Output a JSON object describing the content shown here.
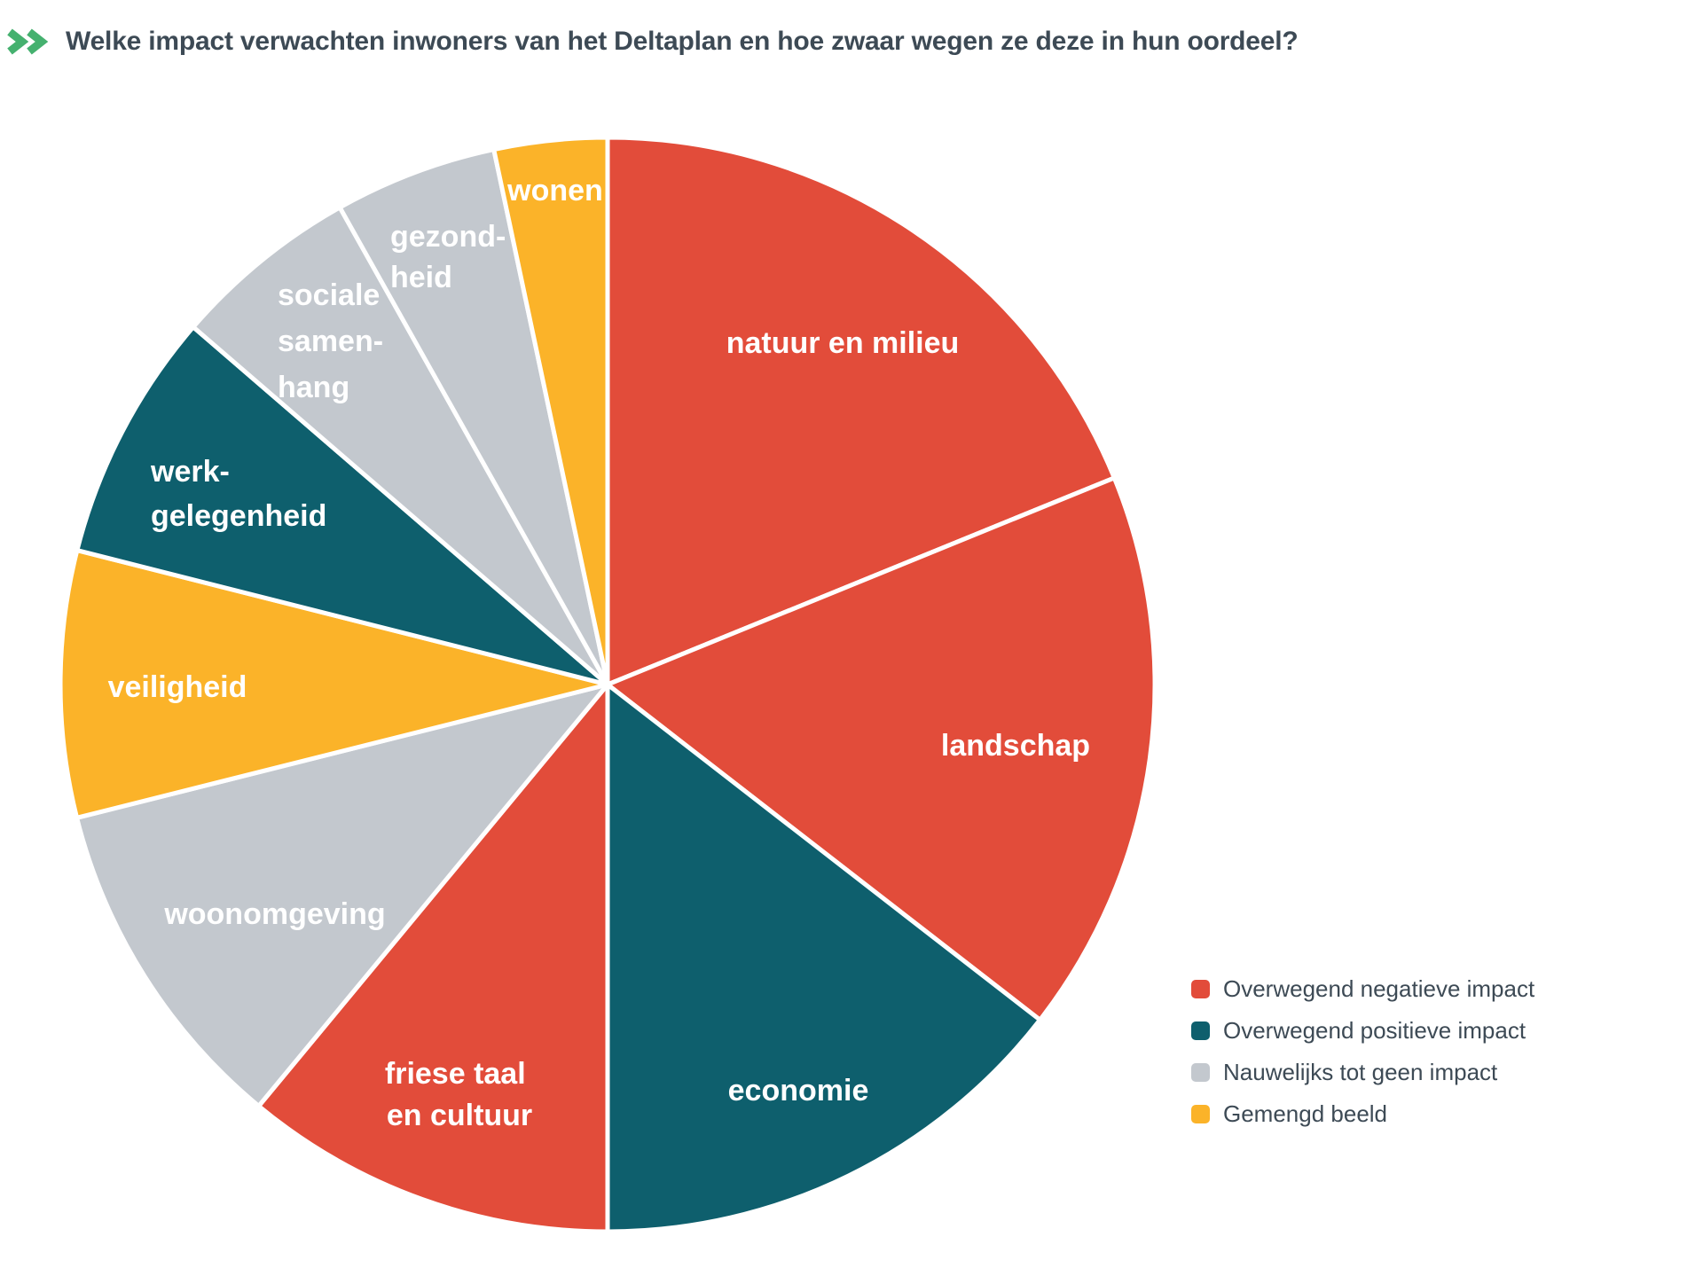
{
  "title": "Welke impact verwachten inwoners van het Deltaplan en hoe zwaar wegen ze deze in hun oordeel?",
  "colors": {
    "title_text": "#3D4A55",
    "chevron_green": "#45B16F",
    "background": "#FFFFFF",
    "slice_separator": "#FFFFFF",
    "slice_label_text": "#FFFFFF"
  },
  "chart_data": {
    "type": "pie",
    "title": "Welke impact verwachten inwoners van het Deltaplan en hoe zwaar wegen ze deze in hun oordeel?",
    "grid": false,
    "legend_position": "bottom-right",
    "legend": [
      {
        "key": "negatief",
        "label": "Overwegend negatieve impact",
        "color": "#E24C3A"
      },
      {
        "key": "positief",
        "label": "Overwegend positieve impact",
        "color": "#0E5F6D"
      },
      {
        "key": "geen",
        "label": "Nauwelijks tot geen impact",
        "color": "#C3C8CE"
      },
      {
        "key": "gemengd",
        "label": "Gemengd beeld",
        "color": "#FBB329"
      }
    ],
    "slices": [
      {
        "id": "natuur-en-milieu",
        "label": "natuur en milieu",
        "label_lines": [
          "natuur en milieu"
        ],
        "impact_key": "negatief",
        "start_deg": 0,
        "end_deg": 67.8,
        "share_pct": 18.8
      },
      {
        "id": "landschap",
        "label": "landschap",
        "label_lines": [
          "landschap"
        ],
        "impact_key": "negatief",
        "start_deg": 67.8,
        "end_deg": 127.8,
        "share_pct": 16.7
      },
      {
        "id": "economie",
        "label": "economie",
        "label_lines": [
          "economie"
        ],
        "impact_key": "positief",
        "start_deg": 127.8,
        "end_deg": 180,
        "share_pct": 14.5
      },
      {
        "id": "friese-taal-en-cultuur",
        "label": "friese taal en cultuur",
        "label_lines": [
          "friese taal",
          "en cultuur"
        ],
        "impact_key": "negatief",
        "start_deg": 180,
        "end_deg": 219.6,
        "share_pct": 11.0
      },
      {
        "id": "woonomgeving",
        "label": "woonomgeving",
        "label_lines": [
          "woonomgeving"
        ],
        "impact_key": "geen",
        "start_deg": 219.6,
        "end_deg": 255.9,
        "share_pct": 10.1
      },
      {
        "id": "veiligheid",
        "label": "veiligheid",
        "label_lines": [
          "veiligheid"
        ],
        "impact_key": "gemengd",
        "start_deg": 255.9,
        "end_deg": 284.2,
        "share_pct": 7.9
      },
      {
        "id": "werk-gelegenheid",
        "label": "werkgelegenheid",
        "label_lines": [
          "werk-",
          "gelegenheid"
        ],
        "impact_key": "positief",
        "start_deg": 284.2,
        "end_deg": 310.8,
        "share_pct": 7.4
      },
      {
        "id": "sociale-samenhang",
        "label": "sociale samenhang",
        "label_lines": [
          "sociale",
          "samen-",
          "hang"
        ],
        "impact_key": "geen",
        "start_deg": 310.8,
        "end_deg": 330.7,
        "share_pct": 5.5
      },
      {
        "id": "gezondheid",
        "label": "gezondheid",
        "label_lines": [
          "gezond-",
          "heid"
        ],
        "impact_key": "geen",
        "start_deg": 330.7,
        "end_deg": 348.0,
        "share_pct": 4.8
      },
      {
        "id": "wonen",
        "label": "wonen",
        "label_lines": [
          "wonen"
        ],
        "impact_key": "gemengd",
        "start_deg": 348.0,
        "end_deg": 360,
        "share_pct": 3.3
      }
    ]
  }
}
